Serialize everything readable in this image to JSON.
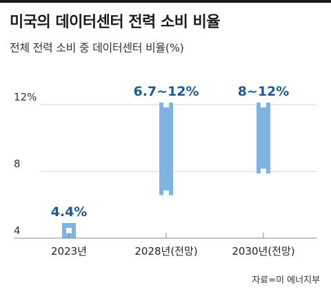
{
  "header": {
    "title": "미국의 데이터센터 전력 소비 비율",
    "subtitle": "전체 전력 소비 중 데이터센터 비율(%)"
  },
  "source": "자료=미 에너지부",
  "colors": {
    "bar": "#7fb4e2",
    "label": "#1a5a9a",
    "grid": "#d5d5d5",
    "axis": "#888888"
  },
  "chart_data": {
    "type": "bar",
    "categories": [
      "2023년",
      "2028년(전망)",
      "2030년(전망)"
    ],
    "ranges": [
      {
        "low": 4.4,
        "high": 4.4,
        "label": "4.4%"
      },
      {
        "low": 6.7,
        "high": 12,
        "label": "6.7~12%"
      },
      {
        "low": 8,
        "high": 12,
        "label": "8~12%"
      }
    ],
    "yticks": [
      {
        "value": 4,
        "label": "4"
      },
      {
        "value": 8,
        "label": "8"
      },
      {
        "value": 12,
        "label": "12%"
      }
    ],
    "ylim": [
      4,
      12
    ],
    "grid": true
  }
}
